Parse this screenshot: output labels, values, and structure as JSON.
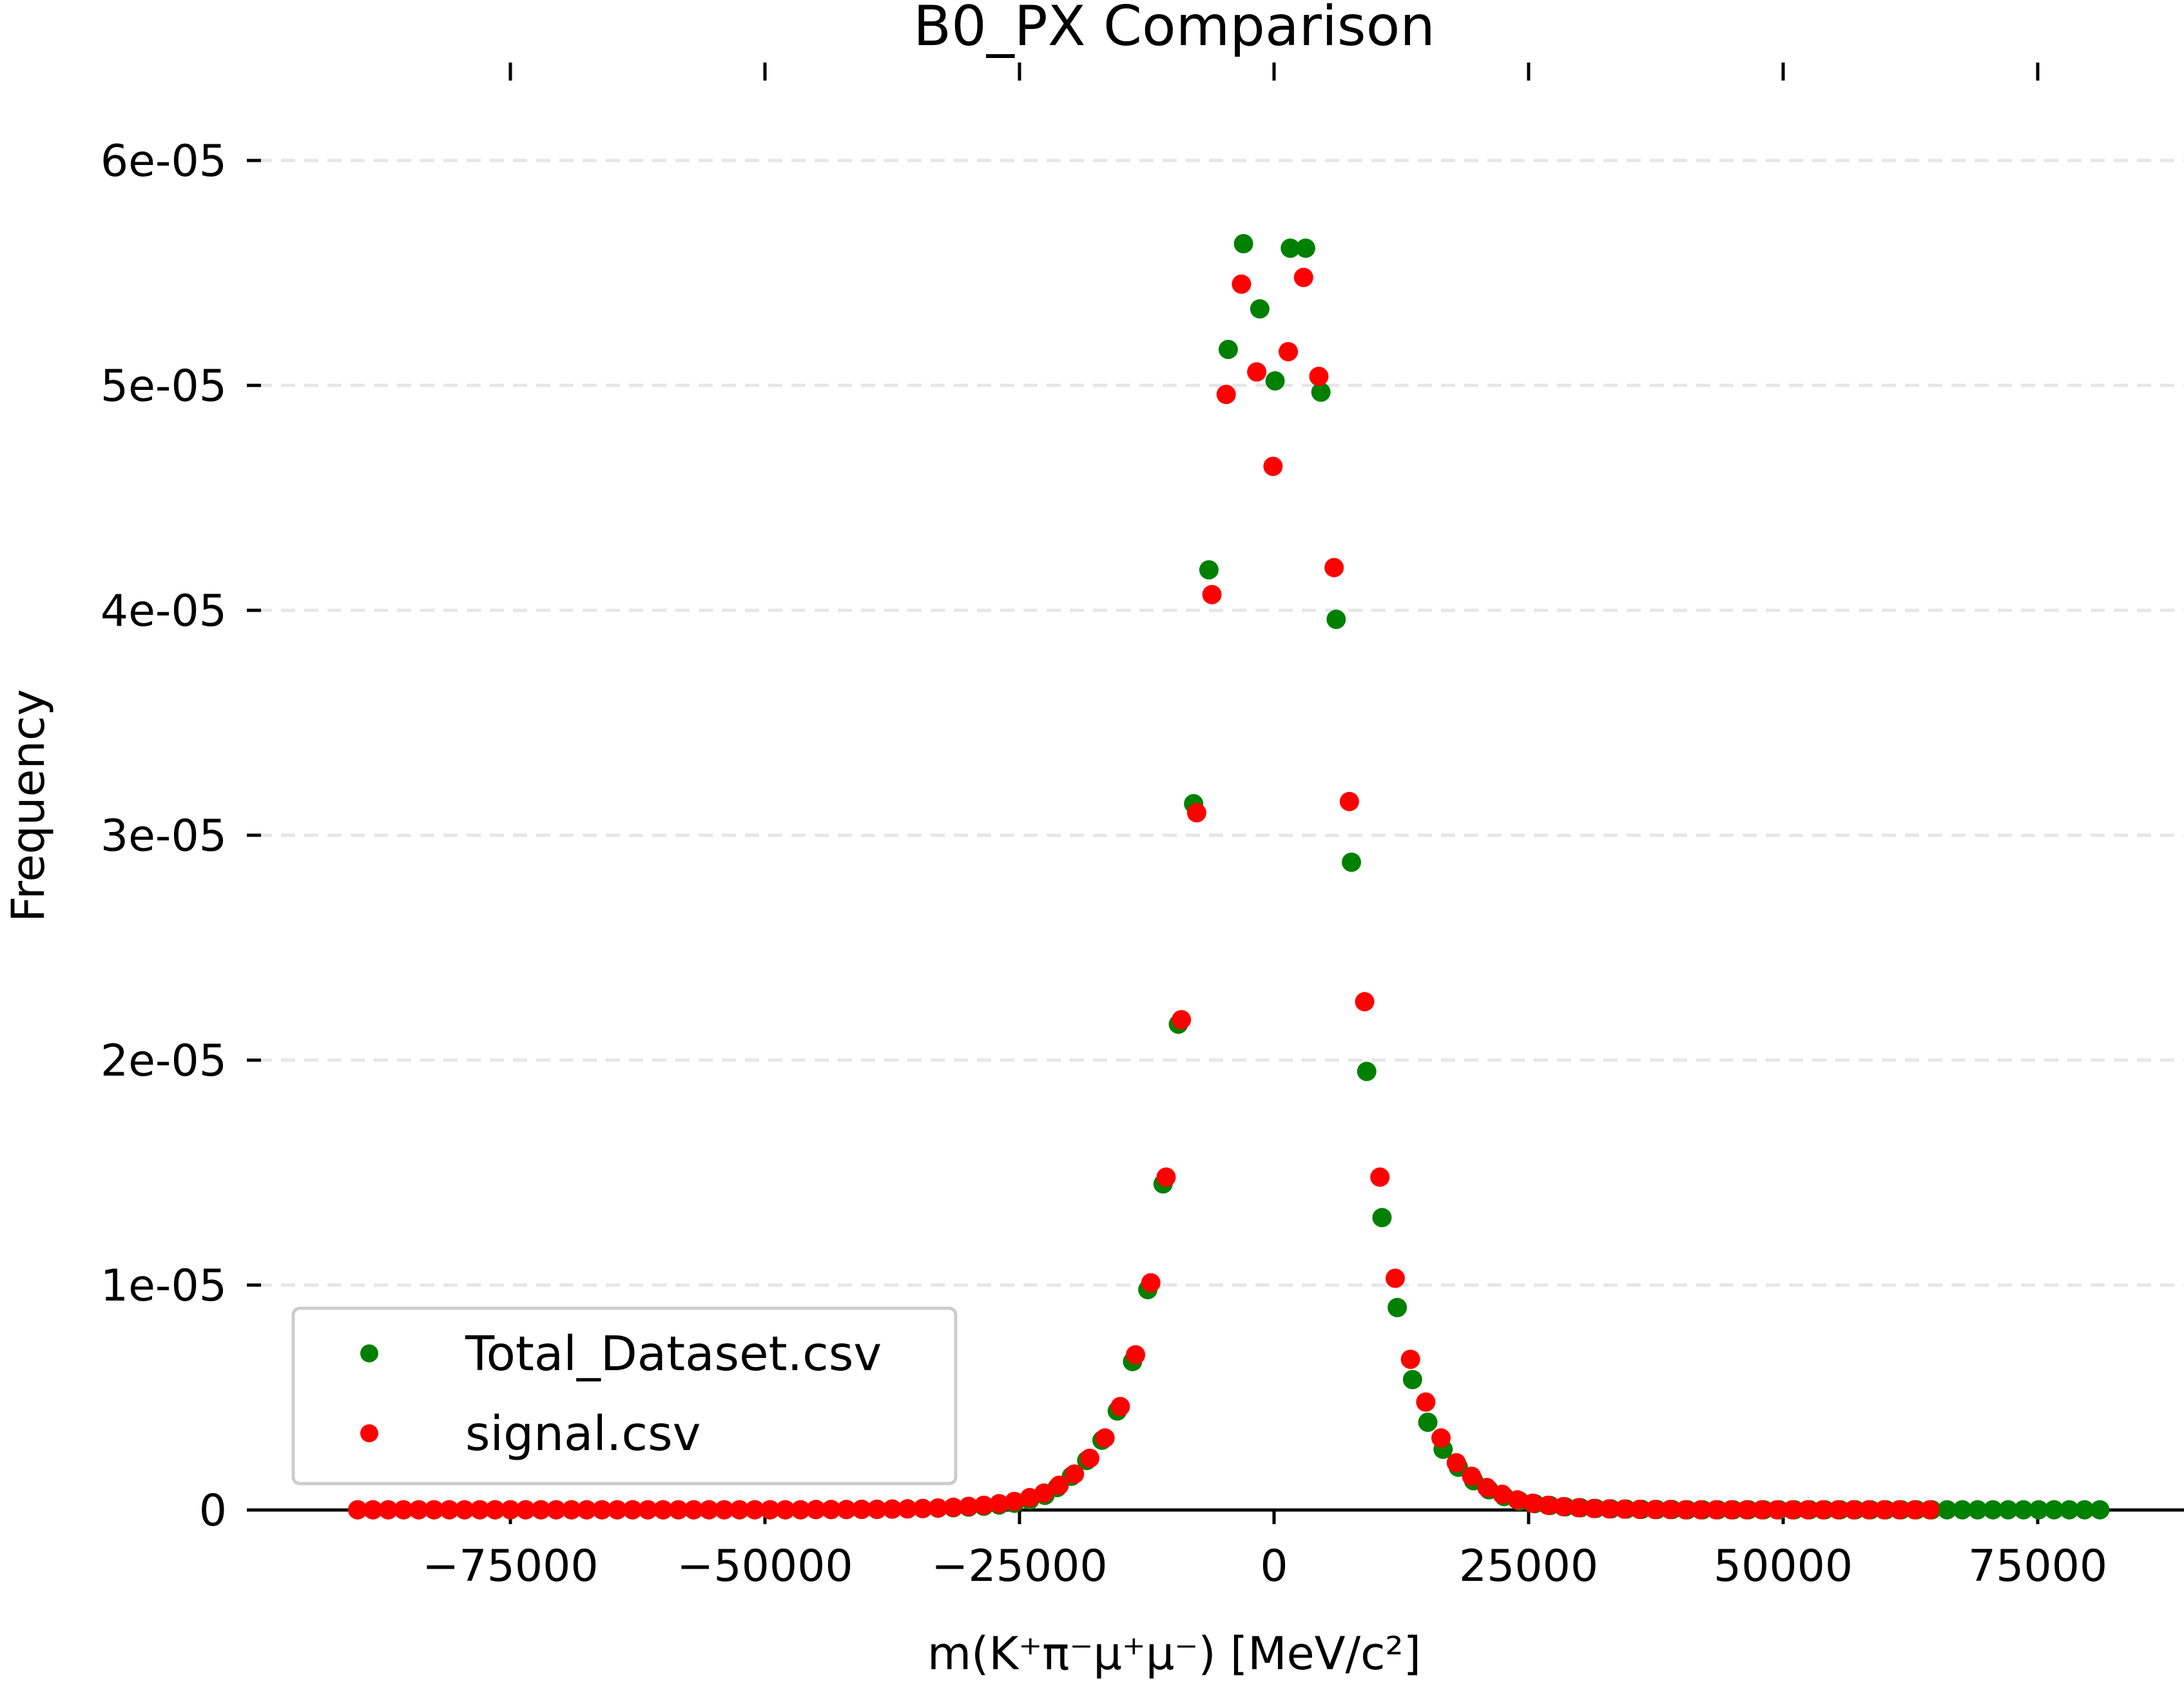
{
  "chart_data": {
    "type": "scatter",
    "title": "B0_PX Comparison",
    "xlabel": "m(K⁺π⁻μ⁺μ⁻) [MeV/c²]",
    "ylabel": "Frequency",
    "xlim": [
      -100000,
      85000
    ],
    "ylim": [
      0,
      6.2e-05
    ],
    "x_ticks": [
      -75000,
      -50000,
      -25000,
      0,
      25000,
      50000,
      75000
    ],
    "x_tick_labels": [
      "−75000",
      "−50000",
      "−25000",
      "0",
      "25000",
      "50000",
      "75000"
    ],
    "y_ticks": [
      0,
      1e-05,
      2e-05,
      3e-05,
      4e-05,
      5e-05,
      6e-05
    ],
    "y_tick_labels": [
      "0",
      "1e-05",
      "2e-05",
      "3e-05",
      "4e-05",
      "5e-05",
      "6e-05"
    ],
    "grid": "horizontal dashed",
    "legend_position": "lower-left",
    "series": [
      {
        "name": "Total_Dataset.csv",
        "color": "#008000",
        "points": [
          [
            -90000,
            1e-08
          ],
          [
            -88500,
            1e-08
          ],
          [
            -87000,
            1e-08
          ],
          [
            -85500,
            1e-08
          ],
          [
            -84000,
            1e-08
          ],
          [
            -82500,
            1e-08
          ],
          [
            -81000,
            1e-08
          ],
          [
            -79500,
            1e-08
          ],
          [
            -78000,
            1e-08
          ],
          [
            -76500,
            1e-08
          ],
          [
            -75000,
            1e-08
          ],
          [
            -73500,
            1e-08
          ],
          [
            -72000,
            1e-08
          ],
          [
            -70500,
            1e-08
          ],
          [
            -69000,
            1e-08
          ],
          [
            -67500,
            1e-08
          ],
          [
            -66000,
            1e-08
          ],
          [
            -64500,
            1e-08
          ],
          [
            -63000,
            1e-08
          ],
          [
            -61500,
            1e-08
          ],
          [
            -60000,
            1e-08
          ],
          [
            -58500,
            1e-08
          ],
          [
            -57000,
            1e-08
          ],
          [
            -55500,
            1e-08
          ],
          [
            -54000,
            1e-08
          ],
          [
            -52500,
            1e-08
          ],
          [
            -51000,
            1e-08
          ],
          [
            -49500,
            1e-08
          ],
          [
            -48000,
            1e-08
          ],
          [
            -46500,
            1e-08
          ],
          [
            -45000,
            2e-08
          ],
          [
            -43500,
            2e-08
          ],
          [
            -42000,
            2e-08
          ],
          [
            -40500,
            3e-08
          ],
          [
            -39000,
            3e-08
          ],
          [
            -37500,
            4e-08
          ],
          [
            -36000,
            5e-08
          ],
          [
            -34500,
            6e-08
          ],
          [
            -33000,
            8e-08
          ],
          [
            -31500,
            1e-07
          ],
          [
            -30000,
            1.3e-07
          ],
          [
            -28500,
            1.7e-07
          ],
          [
            -27000,
            2.2e-07
          ],
          [
            -25500,
            3e-07
          ],
          [
            -24000,
            4.5e-07
          ],
          [
            -22500,
            6.5e-07
          ],
          [
            -21300,
            1e-06
          ],
          [
            -19900,
            1.5e-06
          ],
          [
            -18400,
            2.2e-06
          ],
          [
            -16900,
            3.1e-06
          ],
          [
            -15400,
            4.4e-06
          ],
          [
            -13900,
            6.6e-06
          ],
          [
            -12400,
            9.8e-06
          ],
          [
            -10900,
            1.45e-05
          ],
          [
            -9400,
            2.16e-05
          ],
          [
            -7900,
            3.14e-05
          ],
          [
            -6400,
            4.18e-05
          ],
          [
            -4500,
            5.16e-05
          ],
          [
            -3000,
            5.63e-05
          ],
          [
            -1400,
            5.34e-05
          ],
          [
            100,
            5.02e-05
          ],
          [
            1600,
            5.61e-05
          ],
          [
            3100,
            5.61e-05
          ],
          [
            4600,
            4.97e-05
          ],
          [
            6100,
            3.96e-05
          ],
          [
            7600,
            2.88e-05
          ],
          [
            9100,
            1.95e-05
          ],
          [
            10600,
            1.3e-05
          ],
          [
            12100,
            9e-06
          ],
          [
            13600,
            5.8e-06
          ],
          [
            15100,
            3.9e-06
          ],
          [
            16600,
            2.7e-06
          ],
          [
            18100,
            1.9e-06
          ],
          [
            19600,
            1.3e-06
          ],
          [
            21100,
            9e-07
          ],
          [
            22600,
            6e-07
          ],
          [
            24100,
            4e-07
          ],
          [
            25600,
            2.8e-07
          ],
          [
            27100,
            2e-07
          ],
          [
            28600,
            1.4e-07
          ],
          [
            30100,
            1e-07
          ],
          [
            31600,
            7e-08
          ],
          [
            33100,
            5e-08
          ],
          [
            34600,
            4e-08
          ],
          [
            36100,
            3e-08
          ],
          [
            37600,
            2e-08
          ],
          [
            39100,
            2e-08
          ],
          [
            40600,
            1e-08
          ],
          [
            42100,
            1e-08
          ],
          [
            43600,
            1e-08
          ],
          [
            45100,
            1e-08
          ],
          [
            46600,
            1e-08
          ],
          [
            48100,
            1e-08
          ],
          [
            49600,
            1e-08
          ],
          [
            51100,
            1e-08
          ],
          [
            52600,
            1e-08
          ],
          [
            54100,
            1e-08
          ],
          [
            55600,
            1e-08
          ],
          [
            57100,
            1e-08
          ],
          [
            58600,
            1e-08
          ],
          [
            60100,
            1e-08
          ],
          [
            61600,
            1e-08
          ],
          [
            63100,
            1e-08
          ],
          [
            64600,
            1e-08
          ],
          [
            66100,
            1e-08
          ],
          [
            67600,
            1e-08
          ],
          [
            69100,
            1e-08
          ],
          [
            70600,
            1e-08
          ],
          [
            72100,
            1e-08
          ],
          [
            73600,
            1e-08
          ],
          [
            75100,
            1e-08
          ],
          [
            76600,
            1e-08
          ],
          [
            78100,
            1e-08
          ],
          [
            79600,
            1e-08
          ],
          [
            81100,
            1e-08
          ]
        ]
      },
      {
        "name": "signal.csv",
        "color": "#ff0000",
        "points": [
          [
            -90000,
            1e-08
          ],
          [
            -88500,
            1e-08
          ],
          [
            -87000,
            1e-08
          ],
          [
            -85500,
            1e-08
          ],
          [
            -84000,
            1e-08
          ],
          [
            -82500,
            1e-08
          ],
          [
            -81000,
            1e-08
          ],
          [
            -79500,
            1e-08
          ],
          [
            -78000,
            1e-08
          ],
          [
            -76500,
            1e-08
          ],
          [
            -75000,
            1e-08
          ],
          [
            -73500,
            1e-08
          ],
          [
            -72000,
            1e-08
          ],
          [
            -70500,
            1e-08
          ],
          [
            -69000,
            1e-08
          ],
          [
            -67500,
            1e-08
          ],
          [
            -66000,
            1e-08
          ],
          [
            -64500,
            1e-08
          ],
          [
            -63000,
            1e-08
          ],
          [
            -61500,
            1e-08
          ],
          [
            -60000,
            1e-08
          ],
          [
            -58500,
            1e-08
          ],
          [
            -57000,
            1e-08
          ],
          [
            -55500,
            1e-08
          ],
          [
            -54000,
            1e-08
          ],
          [
            -52500,
            1e-08
          ],
          [
            -51000,
            1e-08
          ],
          [
            -49500,
            1e-08
          ],
          [
            -48000,
            1e-08
          ],
          [
            -46500,
            1e-08
          ],
          [
            -45000,
            2e-08
          ],
          [
            -43500,
            2e-08
          ],
          [
            -42000,
            2e-08
          ],
          [
            -40500,
            3e-08
          ],
          [
            -39000,
            3e-08
          ],
          [
            -37500,
            4e-08
          ],
          [
            -36000,
            5e-08
          ],
          [
            -34500,
            7e-08
          ],
          [
            -33000,
            9e-08
          ],
          [
            -31500,
            1.2e-07
          ],
          [
            -30000,
            1.6e-07
          ],
          [
            -28500,
            2.1e-07
          ],
          [
            -27000,
            2.8e-07
          ],
          [
            -25500,
            3.8e-07
          ],
          [
            -24000,
            5.5e-07
          ],
          [
            -22600,
            7.5e-07
          ],
          [
            -21100,
            1.1e-06
          ],
          [
            -19600,
            1.6e-06
          ],
          [
            -18100,
            2.3e-06
          ],
          [
            -16600,
            3.2e-06
          ],
          [
            -15100,
            4.6e-06
          ],
          [
            -13600,
            6.9e-06
          ],
          [
            -12100,
            1.01e-05
          ],
          [
            -10600,
            1.48e-05
          ],
          [
            -9100,
            2.18e-05
          ],
          [
            -7600,
            3.1e-05
          ],
          [
            -6100,
            4.07e-05
          ],
          [
            -4700,
            4.96e-05
          ],
          [
            -3200,
            5.45e-05
          ],
          [
            -1700,
            5.06e-05
          ],
          [
            -100,
            4.64e-05
          ],
          [
            1400,
            5.15e-05
          ],
          [
            2900,
            5.48e-05
          ],
          [
            4400,
            5.04e-05
          ],
          [
            5900,
            4.19e-05
          ],
          [
            7400,
            3.15e-05
          ],
          [
            8900,
            2.26e-05
          ],
          [
            10400,
            1.48e-05
          ],
          [
            11900,
            1.03e-05
          ],
          [
            13400,
            6.7e-06
          ],
          [
            14900,
            4.8e-06
          ],
          [
            16400,
            3.2e-06
          ],
          [
            17900,
            2.1e-06
          ],
          [
            19400,
            1.5e-06
          ],
          [
            20900,
            1e-06
          ],
          [
            22400,
            7e-07
          ],
          [
            23900,
            4.5e-07
          ],
          [
            25400,
            3e-07
          ],
          [
            26900,
            2.1e-07
          ],
          [
            28400,
            1.5e-07
          ],
          [
            29900,
            1e-07
          ],
          [
            31400,
            7e-08
          ],
          [
            32900,
            5e-08
          ],
          [
            34400,
            4e-08
          ],
          [
            35900,
            3e-08
          ],
          [
            37400,
            2e-08
          ],
          [
            38900,
            2e-08
          ],
          [
            40400,
            1e-08
          ],
          [
            41900,
            1e-08
          ],
          [
            43400,
            1e-08
          ],
          [
            44900,
            1e-08
          ],
          [
            46400,
            1e-08
          ],
          [
            47900,
            1e-08
          ],
          [
            49400,
            1e-08
          ],
          [
            50900,
            1e-08
          ],
          [
            52400,
            1e-08
          ],
          [
            53900,
            1e-08
          ],
          [
            55400,
            1e-08
          ],
          [
            56900,
            1e-08
          ],
          [
            58400,
            1e-08
          ],
          [
            59900,
            1e-08
          ],
          [
            61400,
            1e-08
          ],
          [
            62900,
            1e-08
          ],
          [
            64400,
            1e-08
          ]
        ]
      }
    ]
  }
}
